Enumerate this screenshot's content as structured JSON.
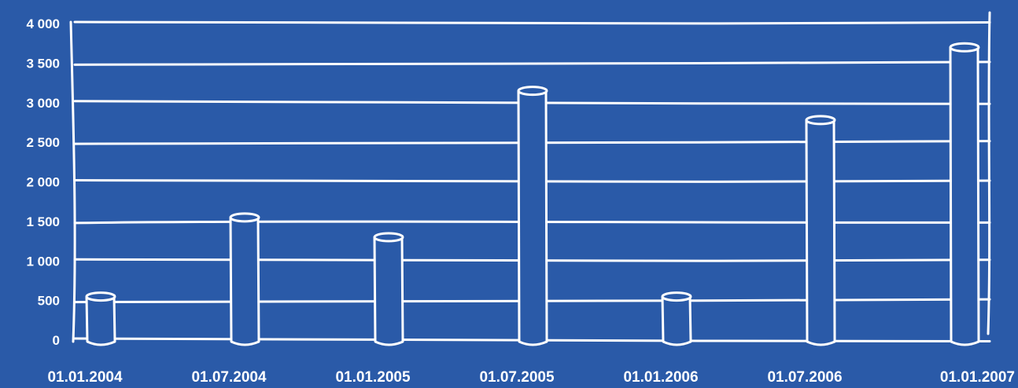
{
  "chart_data": {
    "type": "bar",
    "title": "",
    "xlabel": "",
    "ylabel": "",
    "categories": [
      "01.01.2004",
      "01.07.2004",
      "01.01.2005",
      "01.07.2005",
      "01.01.2006",
      "01.07.2006",
      "01.01.2007"
    ],
    "values": [
      550,
      1550,
      1300,
      3150,
      550,
      2780,
      3700
    ],
    "ylim": [
      0,
      4000
    ],
    "yticks": [
      0,
      500,
      1000,
      1500,
      2000,
      2500,
      3000,
      3500,
      4000
    ],
    "ytick_labels": [
      "0",
      "500",
      "1 000",
      "1 500",
      "2 000",
      "2 500",
      "3 000",
      "3 500",
      "4 000"
    ],
    "grid": true,
    "style": "hand-drawn white cylinders",
    "colors": {
      "background": "#2A5AA8",
      "ink": "#FFFFFF"
    }
  }
}
